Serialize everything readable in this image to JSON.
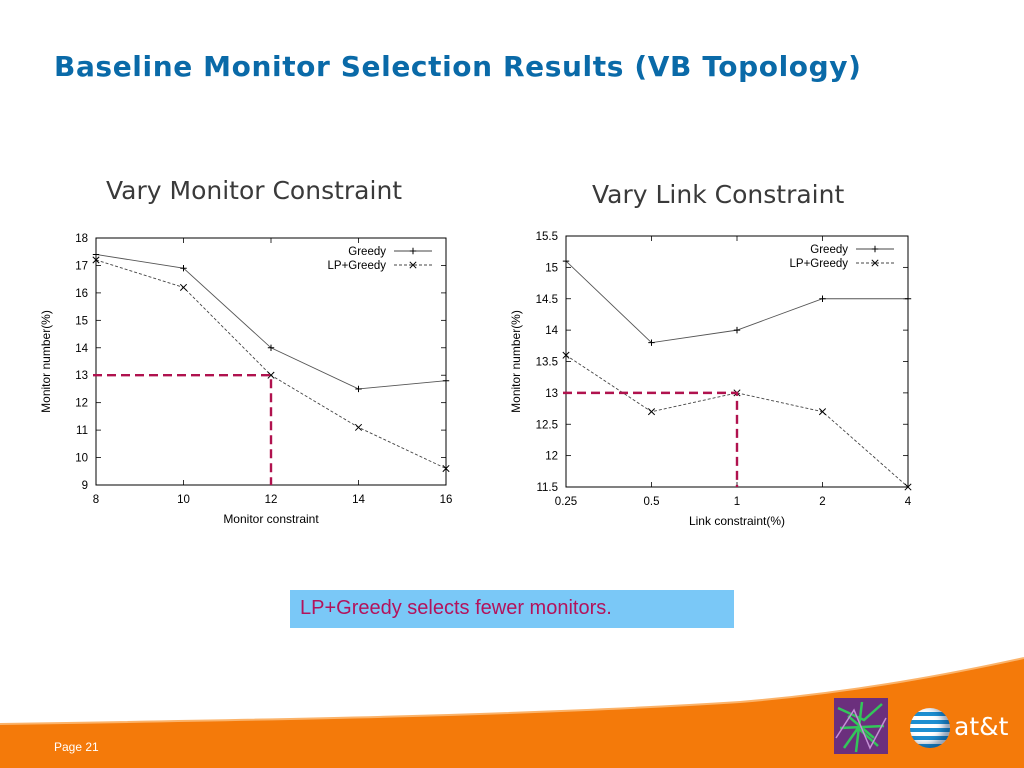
{
  "slide": {
    "title": "Baseline Monitor Selection Results (VB Topology)",
    "callout": "LP+Greedy selects fewer monitors.",
    "page": "Page 21",
    "brand": "at&t"
  },
  "colors": {
    "title": "#0a6aa8",
    "callout_bg": "#7ac8f7",
    "callout_text": "#b3135c",
    "footer_orange": "#f47a0a",
    "highlight_dash": "#b0124e"
  },
  "icons": [
    "att-globe-icon",
    "network-map-logo-icon"
  ],
  "chart_data": [
    {
      "type": "line",
      "heading": "Vary Monitor Constraint",
      "xlabel": "Monitor constraint",
      "ylabel": "Monitor number(%)",
      "x": [
        8,
        10,
        12,
        14,
        16
      ],
      "x_ticks": [
        "8",
        "10",
        "12",
        "14",
        "16"
      ],
      "xlim": [
        8,
        16
      ],
      "y_ticks": [
        "9",
        "10",
        "11",
        "12",
        "13",
        "14",
        "15",
        "16",
        "17",
        "18"
      ],
      "ylim": [
        9,
        18
      ],
      "grid": false,
      "legend_position": "top-right",
      "series": [
        {
          "name": "Greedy",
          "marker": "+",
          "style": "solid",
          "values": [
            17.4,
            16.9,
            14.0,
            12.5,
            12.8
          ]
        },
        {
          "name": "LP+Greedy",
          "marker": "x",
          "style": "dashed",
          "values": [
            17.2,
            16.2,
            13.0,
            11.1,
            9.6
          ]
        }
      ],
      "highlight": {
        "x": 12,
        "y": 13
      }
    },
    {
      "type": "line",
      "heading": "Vary Link Constraint",
      "xlabel": "Link constraint(%)",
      "ylabel": "Monitor number(%)",
      "x": [
        "0.25",
        "0.5",
        "1",
        "2",
        "4"
      ],
      "x_ticks": [
        "0.25",
        "0.5",
        "1",
        "2",
        "4"
      ],
      "y_ticks": [
        "11.5",
        "12",
        "12.5",
        "13",
        "13.5",
        "14",
        "14.5",
        "15",
        "15.5"
      ],
      "ylim": [
        11.5,
        15.5
      ],
      "grid": false,
      "legend_position": "top-right",
      "series": [
        {
          "name": "Greedy",
          "marker": "+",
          "style": "solid",
          "values": [
            15.1,
            13.8,
            14.0,
            14.5,
            14.5
          ]
        },
        {
          "name": "LP+Greedy",
          "marker": "x",
          "style": "dashed",
          "values": [
            13.6,
            12.7,
            13.0,
            12.7,
            11.5
          ]
        }
      ],
      "highlight": {
        "x": "1",
        "y": 13
      }
    }
  ]
}
